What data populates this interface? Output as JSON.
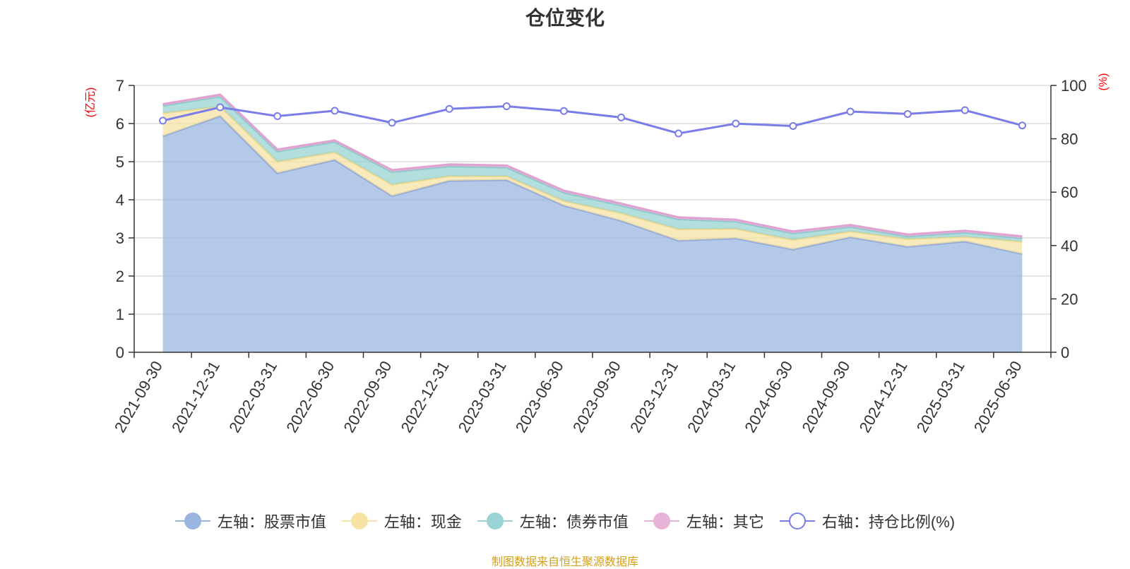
{
  "colors": {
    "stock": "#9bb5e0",
    "cash": "#f7e3a4",
    "bond": "#99d3d3",
    "other": "#e8b3d9",
    "ratio": "#7a7de8",
    "axis_unit": "#ff0000",
    "source": "#d4a017"
  },
  "legend": {
    "stock": "左轴：股票市值",
    "cash": "左轴：现金",
    "bond": "左轴：债券市值",
    "other": "左轴：其它",
    "ratio": "右轴：持仓比例(%)"
  },
  "source_text": "制图数据来自恒生聚源数据库",
  "chart_data": {
    "type": "area",
    "title": "仓位变化",
    "left_axis_label": "(亿元)",
    "right_axis_label": "(%)",
    "ylim_left": [
      0,
      7
    ],
    "left_ticks": [
      0,
      1,
      2,
      3,
      4,
      5,
      6,
      7
    ],
    "ylim_right": [
      0,
      100
    ],
    "right_ticks": [
      0,
      20,
      40,
      60,
      80,
      100
    ],
    "grid": true,
    "legend_position": "bottom",
    "stacked": true,
    "categories": [
      "2021-09-30",
      "2021-12-31",
      "2022-03-31",
      "2022-06-30",
      "2022-09-30",
      "2022-12-31",
      "2023-03-31",
      "2023-06-30",
      "2023-09-30",
      "2023-12-31",
      "2024-03-31",
      "2024-06-30",
      "2024-09-30",
      "2024-12-31",
      "2025-03-31",
      "2025-06-30"
    ],
    "series": [
      {
        "name": "左轴：股票市值",
        "axis": "left",
        "values": [
          5.67,
          6.2,
          4.7,
          5.05,
          4.1,
          4.5,
          4.52,
          3.85,
          3.45,
          2.93,
          2.99,
          2.7,
          3.02,
          2.77,
          2.91,
          2.58
        ]
      },
      {
        "name": "左轴：现金",
        "axis": "left",
        "values": [
          0.6,
          0.25,
          0.3,
          0.2,
          0.3,
          0.12,
          0.1,
          0.12,
          0.2,
          0.3,
          0.25,
          0.25,
          0.15,
          0.2,
          0.12,
          0.32
        ]
      },
      {
        "name": "左轴：债券市值",
        "axis": "left",
        "values": [
          0.2,
          0.26,
          0.27,
          0.27,
          0.33,
          0.26,
          0.23,
          0.22,
          0.2,
          0.26,
          0.19,
          0.17,
          0.12,
          0.07,
          0.11,
          0.09
        ]
      },
      {
        "name": "左轴：其它",
        "axis": "left",
        "values": [
          0.04,
          0.05,
          0.05,
          0.04,
          0.05,
          0.05,
          0.05,
          0.05,
          0.05,
          0.05,
          0.05,
          0.05,
          0.05,
          0.05,
          0.05,
          0.05
        ]
      },
      {
        "name": "右轴：持仓比例(%)",
        "axis": "right",
        "type": "line",
        "values": [
          86.8,
          91.8,
          88.5,
          90.5,
          86.0,
          91.2,
          92.2,
          90.4,
          88.0,
          82.0,
          85.7,
          84.8,
          90.2,
          89.3,
          90.7,
          85.0
        ]
      }
    ]
  }
}
